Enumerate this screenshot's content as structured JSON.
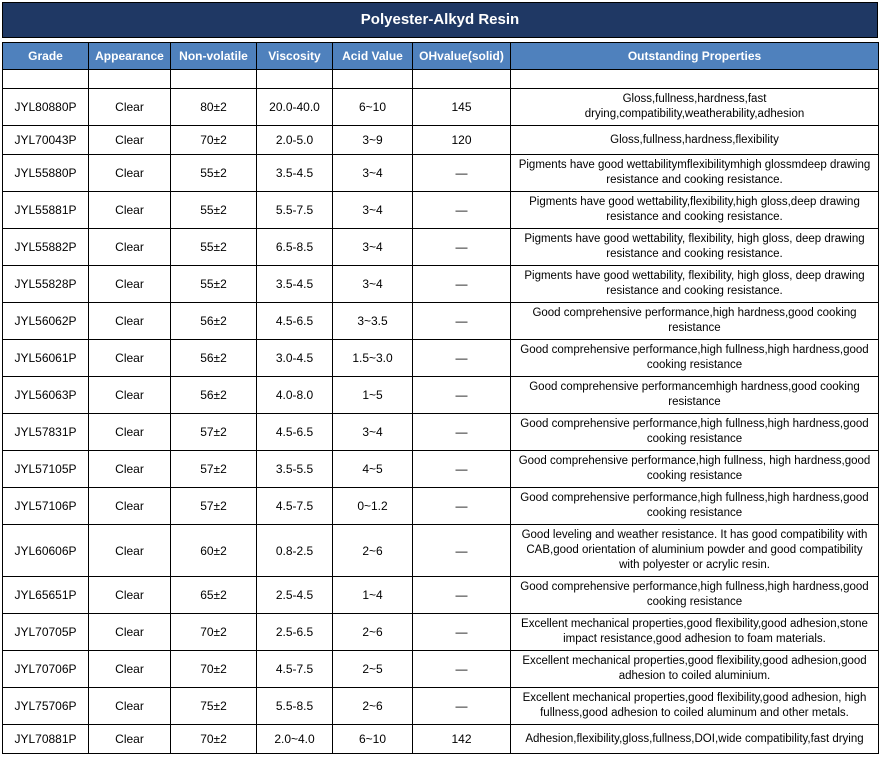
{
  "title": "Polyester-Alkyd Resin",
  "colors": {
    "title_bg": "#1F3864",
    "header_bg": "#4F81BD",
    "header_text": "#FFFFFF",
    "border": "#000000",
    "body_bg": "#FFFFFF",
    "body_text": "#000000"
  },
  "table": {
    "columns": [
      "Grade",
      "Appearance",
      "Non-volatile",
      "Viscosity",
      "Acid Value",
      "OHvalue(solid)",
      "Outstanding Properties"
    ],
    "rows": [
      {
        "grade": "JYL80880P",
        "appearance": "Clear",
        "non_volatile": "80±2",
        "viscosity": "20.0-40.0",
        "acid_value": "6~10",
        "oh_value": "145",
        "properties": "Gloss,fullness,hardness,fast drying,compatibility,weatherability,adhesion"
      },
      {
        "grade": "JYL70043P",
        "appearance": "Clear",
        "non_volatile": "70±2",
        "viscosity": "2.0-5.0",
        "acid_value": "3~9",
        "oh_value": "120",
        "properties": "Gloss,fullness,hardness,flexibility"
      },
      {
        "grade": "JYL55880P",
        "appearance": "Clear",
        "non_volatile": "55±2",
        "viscosity": "3.5-4.5",
        "acid_value": "3~4",
        "oh_value": "—",
        "properties": "Pigments have good wettabilitymflexibilitymhigh glossmdeep drawing resistance and cooking resistance."
      },
      {
        "grade": "JYL55881P",
        "appearance": "Clear",
        "non_volatile": "55±2",
        "viscosity": "5.5-7.5",
        "acid_value": "3~4",
        "oh_value": "—",
        "properties": "Pigments have good wettability,flexibility,high gloss,deep drawing resistance and cooking resistance."
      },
      {
        "grade": "JYL55882P",
        "appearance": "Clear",
        "non_volatile": "55±2",
        "viscosity": "6.5-8.5",
        "acid_value": "3~4",
        "oh_value": "—",
        "properties": "Pigments have good wettability, flexibility, high gloss, deep drawing resistance and cooking resistance."
      },
      {
        "grade": "JYL55828P",
        "appearance": "Clear",
        "non_volatile": "55±2",
        "viscosity": "3.5-4.5",
        "acid_value": "3~4",
        "oh_value": "—",
        "properties": "Pigments have good wettability, flexibility, high gloss, deep drawing resistance and cooking resistance."
      },
      {
        "grade": "JYL56062P",
        "appearance": "Clear",
        "non_volatile": "56±2",
        "viscosity": "4.5-6.5",
        "acid_value": "3~3.5",
        "oh_value": "—",
        "properties": "Good comprehensive performance,high hardness,good cooking resistance"
      },
      {
        "grade": "JYL56061P",
        "appearance": "Clear",
        "non_volatile": "56±2",
        "viscosity": "3.0-4.5",
        "acid_value": "1.5~3.0",
        "oh_value": "—",
        "properties": "Good comprehensive performance,high fullness,high hardness,good cooking resistance"
      },
      {
        "grade": "JYL56063P",
        "appearance": "Clear",
        "non_volatile": "56±2",
        "viscosity": "4.0-8.0",
        "acid_value": "1~5",
        "oh_value": "—",
        "properties": "Good comprehensive performancemhigh hardness,good cooking resistance"
      },
      {
        "grade": "JYL57831P",
        "appearance": "Clear",
        "non_volatile": "57±2",
        "viscosity": "4.5-6.5",
        "acid_value": "3~4",
        "oh_value": "—",
        "properties": "Good comprehensive performance,high fullness,high hardness,good cooking resistance"
      },
      {
        "grade": "JYL57105P",
        "appearance": "Clear",
        "non_volatile": "57±2",
        "viscosity": "3.5-5.5",
        "acid_value": "4~5",
        "oh_value": "—",
        "properties": "Good comprehensive performance,high fullness, high hardness,good cooking resistance"
      },
      {
        "grade": "JYL57106P",
        "appearance": "Clear",
        "non_volatile": "57±2",
        "viscosity": "4.5-7.5",
        "acid_value": "0~1.2",
        "oh_value": "—",
        "properties": "Good comprehensive performance,high fullness,high hardness,good cooking resistance"
      },
      {
        "grade": "JYL60606P",
        "appearance": "Clear",
        "non_volatile": "60±2",
        "viscosity": "0.8-2.5",
        "acid_value": "2~6",
        "oh_value": "—",
        "properties": "Good leveling and weather resistance. It has good compatibility with CAB,good orientation of aluminium powder and good compatibility with polyester or acrylic resin."
      },
      {
        "grade": "JYL65651P",
        "appearance": "Clear",
        "non_volatile": "65±2",
        "viscosity": "2.5-4.5",
        "acid_value": "1~4",
        "oh_value": "—",
        "properties": "Good comprehensive performance,high fullness,high hardness,good cooking resistance"
      },
      {
        "grade": "JYL70705P",
        "appearance": "Clear",
        "non_volatile": "70±2",
        "viscosity": "2.5-6.5",
        "acid_value": "2~6",
        "oh_value": "—",
        "properties": "Excellent mechanical properties,good flexibility,good adhesion,stone impact resistance,good adhesion to foam materials."
      },
      {
        "grade": "JYL70706P",
        "appearance": "Clear",
        "non_volatile": "70±2",
        "viscosity": "4.5-7.5",
        "acid_value": "2~5",
        "oh_value": "—",
        "properties": "Excellent mechanical properties,good flexibility,good adhesion,good adhesion to coiled aluminium."
      },
      {
        "grade": "JYL75706P",
        "appearance": "Clear",
        "non_volatile": "75±2",
        "viscosity": "5.5-8.5",
        "acid_value": "2~6",
        "oh_value": "—",
        "properties": "Excellent mechanical properties,good flexibility,good adhesion, high fullness,good adhesion to coiled aluminum and other metals."
      },
      {
        "grade": "JYL70881P",
        "appearance": "Clear",
        "non_volatile": "70±2",
        "viscosity": "2.0~4.0",
        "acid_value": "6~10",
        "oh_value": "142",
        "properties": "Adhesion,flexibility,gloss,fullness,DOI,wide compatibility,fast drying"
      }
    ]
  }
}
